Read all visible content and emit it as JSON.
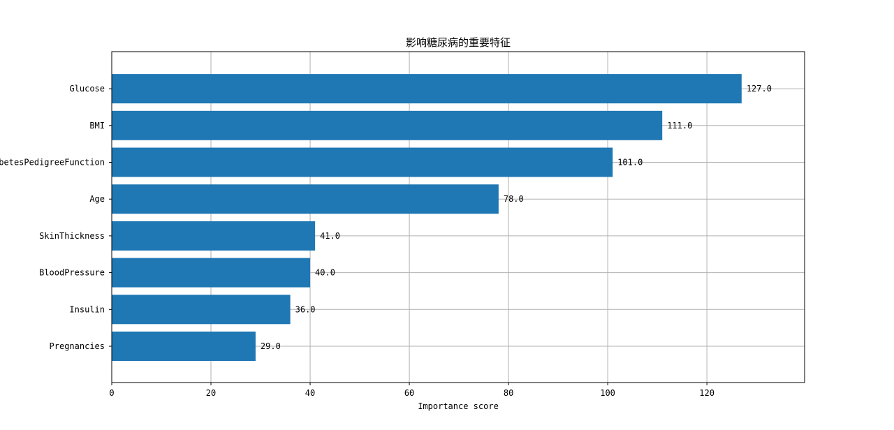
{
  "chart_data": {
    "type": "bar",
    "orientation": "horizontal",
    "title": "影响糖尿病的重要特征",
    "xlabel": "Importance score",
    "ylabel": "",
    "categories": [
      "Pregnancies",
      "Insulin",
      "BloodPressure",
      "SkinThickness",
      "Age",
      "DiabetesPedigreeFunction",
      "BMI",
      "Glucose"
    ],
    "values": [
      29.0,
      36.0,
      40.0,
      41.0,
      78.0,
      101.0,
      111.0,
      127.0
    ],
    "value_labels": [
      "29.0",
      "36.0",
      "40.0",
      "41.0",
      "78.0",
      "101.0",
      "111.0",
      "127.0"
    ],
    "xlim": [
      0,
      139.7
    ],
    "xticks": [
      0,
      20,
      40,
      60,
      80,
      100,
      120
    ],
    "grid": true,
    "bar_color": "#1f77b4"
  }
}
